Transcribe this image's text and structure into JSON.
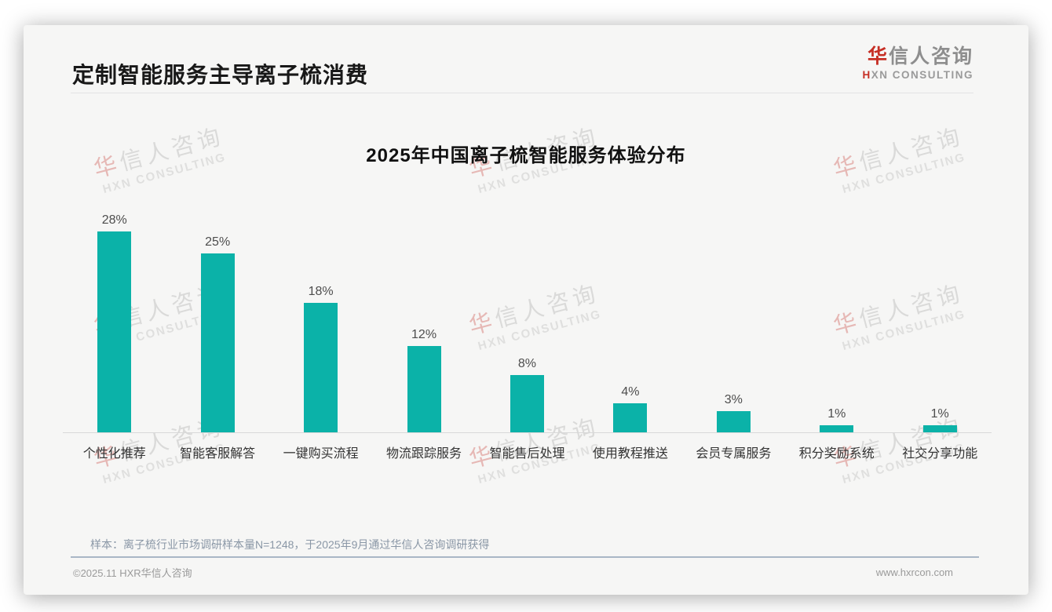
{
  "header": {
    "title": "定制智能服务主导离子梳消费",
    "logo": {
      "zh_accent": "华",
      "zh_rest": "信人咨询",
      "en_accent": "H",
      "en_rest": "XN CONSULTING"
    }
  },
  "chart_data": {
    "type": "bar",
    "title": "2025年中国离子梳智能服务体验分布",
    "categories": [
      "个性化推荐",
      "智能客服解答",
      "一键购买流程",
      "物流跟踪服务",
      "智能售后处理",
      "使用教程推送",
      "会员专属服务",
      "积分奖励系统",
      "社交分享功能"
    ],
    "values": [
      28,
      25,
      18,
      12,
      8,
      4,
      3,
      1,
      1
    ],
    "value_labels": [
      "28%",
      "25%",
      "18%",
      "12%",
      "8%",
      "4%",
      "3%",
      "1%",
      "1%"
    ],
    "unit": "%",
    "bar_color": "#0bb2a8",
    "ylim": [
      0,
      30
    ],
    "grid": false,
    "legend": false,
    "xlabel": "",
    "ylabel": ""
  },
  "watermark": {
    "zh_accent": "华",
    "zh_rest": "信人咨询",
    "en": "HXN CONSULTING"
  },
  "note": "样本：离子梳行业市场调研样本量N=1248，于2025年9月通过华信人咨询调研获得",
  "footer": {
    "copyright": "©2025.11 HXR华信人咨询",
    "website": "www.hxrcon.com"
  },
  "colors": {
    "accent_red": "#c62f25",
    "bar_teal": "#0bb2a8"
  }
}
